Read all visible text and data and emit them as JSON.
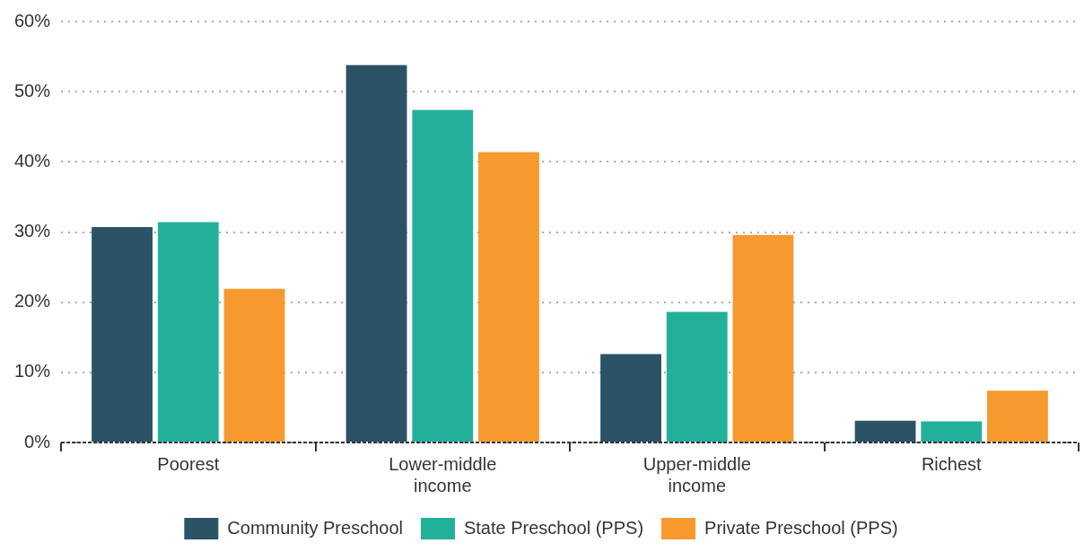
{
  "chart_data": {
    "type": "bar",
    "categories": [
      "Poorest",
      "Lower-middle income",
      "Upper-middle income",
      "Richest"
    ],
    "series": [
      {
        "name": "Community Preschool",
        "color": "#2c5266",
        "values": [
          30.7,
          53.8,
          12.6,
          3.1
        ]
      },
      {
        "name": "State Preschool (PPS)",
        "color": "#23b09a",
        "values": [
          31.4,
          47.4,
          18.6,
          3.0
        ]
      },
      {
        "name": "Private Preschool (PPS)",
        "color": "#f7992f",
        "values": [
          21.9,
          41.4,
          29.6,
          7.4
        ]
      }
    ],
    "ylim": [
      0,
      60
    ],
    "yticks": [
      {
        "value": 0,
        "label": "0%"
      },
      {
        "value": 10,
        "label": "10%"
      },
      {
        "value": 20,
        "label": "20%"
      },
      {
        "value": 30,
        "label": "30%"
      },
      {
        "value": 40,
        "label": "40%"
      },
      {
        "value": 50,
        "label": "50%"
      },
      {
        "value": 60,
        "label": "60%"
      }
    ],
    "grid": "y",
    "legend": "bottom"
  }
}
